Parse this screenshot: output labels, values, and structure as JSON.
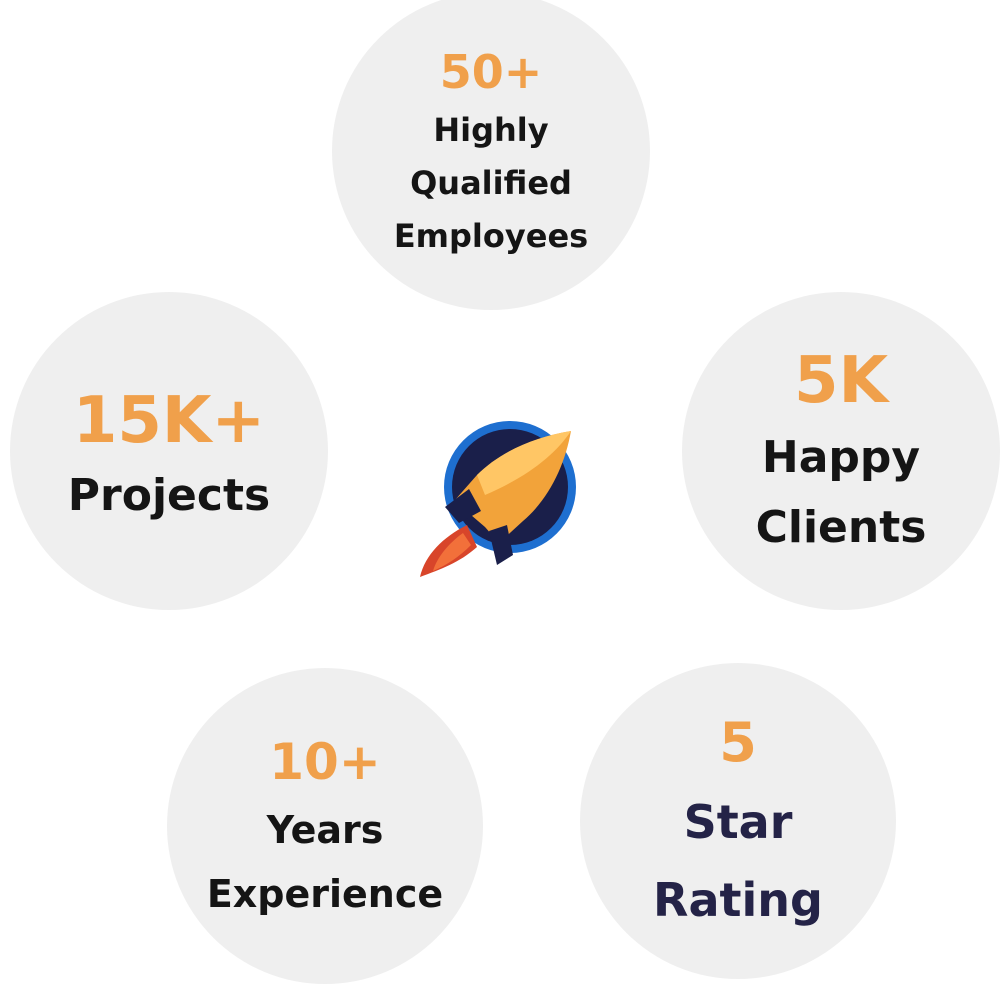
{
  "stats": [
    {
      "value": "50+",
      "line1": "Highly",
      "line2": "Qualified",
      "line3": "Employees"
    },
    {
      "value": "15K+",
      "line1": "Projects"
    },
    {
      "value": "5K",
      "line1": "Happy",
      "line2": "Clients"
    },
    {
      "value": "10+",
      "line1": "Years",
      "line2": "Experience"
    },
    {
      "value": "5",
      "line1": "Star",
      "line2": "Rating"
    }
  ],
  "logo": {
    "icon": "rocket-icon"
  },
  "colors": {
    "accent": "#f0a04b",
    "text": "#151515",
    "rating_text": "#242347",
    "circle_bg": "#efefef",
    "rocket_blue": "#1e6fd0",
    "rocket_navy": "#1a1f4a",
    "rocket_orange": "#f2a33a",
    "rocket_red": "#d8452a"
  }
}
